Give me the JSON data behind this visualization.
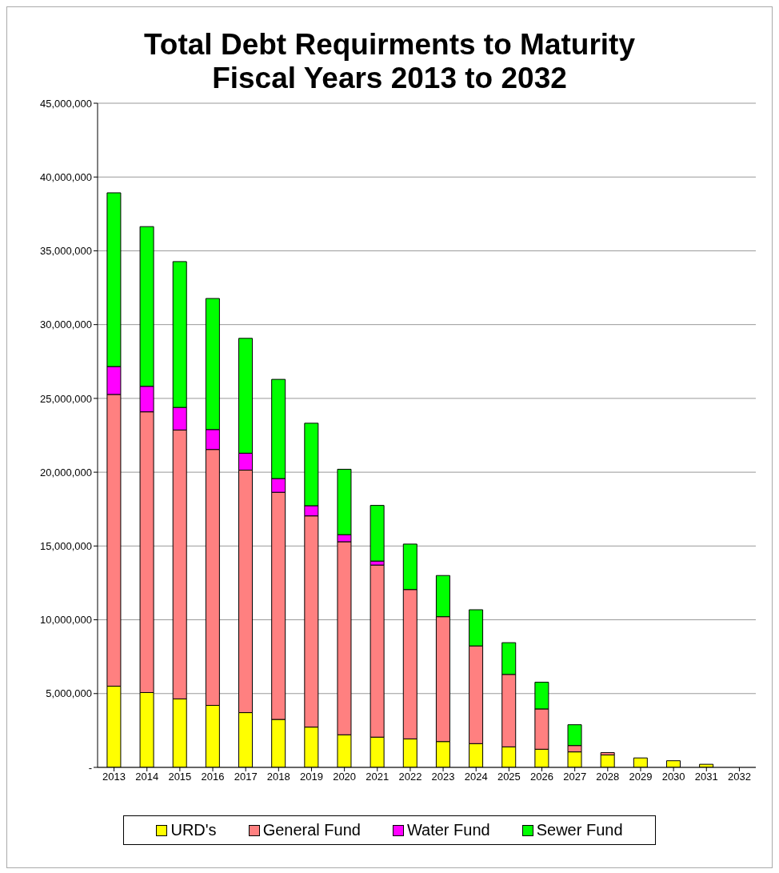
{
  "chart_data": {
    "type": "bar",
    "title": "Total Debt Requirments to Maturity",
    "subtitle": "Fiscal Years 2013 to 2032",
    "stacked": true,
    "categories": [
      "2013",
      "2014",
      "2015",
      "2016",
      "2017",
      "2018",
      "2019",
      "2020",
      "2021",
      "2022",
      "2023",
      "2024",
      "2025",
      "2026",
      "2027",
      "2028",
      "2029",
      "2030",
      "2031",
      "2032"
    ],
    "series": [
      {
        "name": "URD's",
        "color": "#ffff00",
        "values": [
          5500000,
          5070000,
          4640000,
          4200000,
          3710000,
          3250000,
          2730000,
          2210000,
          2050000,
          1930000,
          1750000,
          1610000,
          1390000,
          1230000,
          1050000,
          840000,
          640000,
          450000,
          210000,
          0
        ]
      },
      {
        "name": "General Fund",
        "color": "#ff8080",
        "values": [
          19770000,
          19020000,
          18220000,
          17340000,
          16430000,
          15390000,
          14310000,
          13080000,
          11660000,
          10120000,
          8460000,
          6620000,
          4910000,
          2730000,
          430000,
          160000,
          0,
          0,
          0,
          0
        ]
      },
      {
        "name": "Water Fund",
        "color": "#ff00ff",
        "values": [
          1890000,
          1730000,
          1530000,
          1350000,
          1150000,
          930000,
          690000,
          480000,
          270000,
          0,
          0,
          0,
          0,
          0,
          0,
          0,
          0,
          0,
          0,
          0
        ]
      },
      {
        "name": "Sewer Fund",
        "color": "#00ff00",
        "values": [
          11770000,
          10820000,
          9880000,
          8880000,
          7780000,
          6720000,
          5590000,
          4430000,
          3770000,
          3080000,
          2790000,
          2450000,
          2150000,
          1810000,
          1410000,
          0,
          0,
          0,
          0,
          0
        ]
      }
    ],
    "ylim": [
      0,
      45000000
    ],
    "yticks": [
      {
        "value": 0,
        "label": "-"
      },
      {
        "value": 5000000,
        "label": "5,000,000"
      },
      {
        "value": 10000000,
        "label": "10,000,000"
      },
      {
        "value": 15000000,
        "label": "15,000,000"
      },
      {
        "value": 20000000,
        "label": "20,000,000"
      },
      {
        "value": 25000000,
        "label": "25,000,000"
      },
      {
        "value": 30000000,
        "label": "30,000,000"
      },
      {
        "value": 35000000,
        "label": "35,000,000"
      },
      {
        "value": 40000000,
        "label": "40,000,000"
      },
      {
        "value": 45000000,
        "label": "45,000,000"
      }
    ],
    "grid": "y",
    "legend": "bottom"
  }
}
